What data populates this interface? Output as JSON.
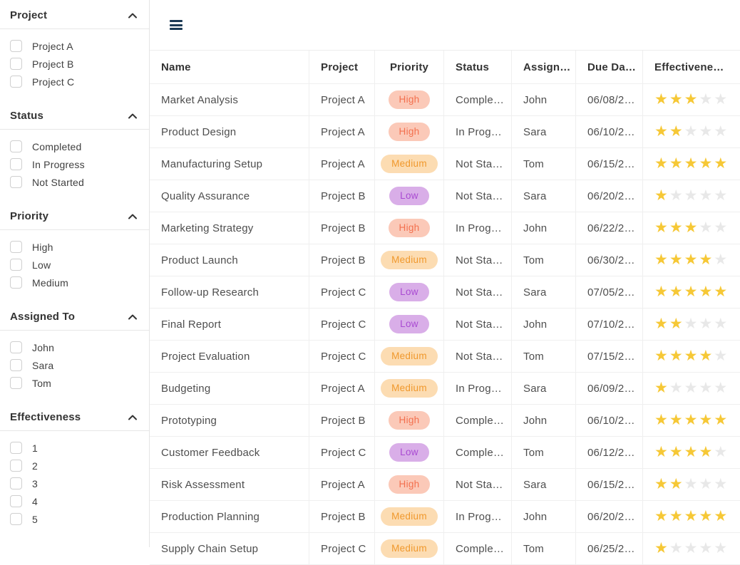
{
  "sidebar": {
    "sections": [
      {
        "title": "Project",
        "options": [
          "Project A",
          "Project B",
          "Project C"
        ]
      },
      {
        "title": "Status",
        "options": [
          "Completed",
          "In Progress",
          "Not Started"
        ]
      },
      {
        "title": "Priority",
        "options": [
          "High",
          "Low",
          "Medium"
        ]
      },
      {
        "title": "Assigned To",
        "options": [
          "John",
          "Sara",
          "Tom"
        ]
      },
      {
        "title": "Effectiveness",
        "options": [
          "1",
          "2",
          "3",
          "4",
          "5"
        ]
      }
    ]
  },
  "toolbar": {
    "menu_icon": "hamburger-icon",
    "menu_color": "#1c3a55"
  },
  "table": {
    "columns": [
      {
        "label": "Name"
      },
      {
        "label": "Project"
      },
      {
        "label": "Priority"
      },
      {
        "label": "Status"
      },
      {
        "label": "Assign…"
      },
      {
        "label": "Due Da…"
      },
      {
        "label": "Effectivene…"
      }
    ],
    "rows": [
      {
        "name": "Market Analysis",
        "project": "Project A",
        "priority": "High",
        "status": "Comple…",
        "assignee": "John",
        "due": "06/08/2…",
        "rating": 3
      },
      {
        "name": "Product Design",
        "project": "Project A",
        "priority": "High",
        "status": "In Prog…",
        "assignee": "Sara",
        "due": "06/10/2…",
        "rating": 2
      },
      {
        "name": "Manufacturing Setup",
        "project": "Project A",
        "priority": "Medium",
        "status": "Not Sta…",
        "assignee": "Tom",
        "due": "06/15/2…",
        "rating": 5
      },
      {
        "name": "Quality Assurance",
        "project": "Project B",
        "priority": "Low",
        "status": "Not Sta…",
        "assignee": "Sara",
        "due": "06/20/2…",
        "rating": 1
      },
      {
        "name": "Marketing Strategy",
        "project": "Project B",
        "priority": "High",
        "status": "In Prog…",
        "assignee": "John",
        "due": "06/22/2…",
        "rating": 3
      },
      {
        "name": "Product Launch",
        "project": "Project B",
        "priority": "Medium",
        "status": "Not Sta…",
        "assignee": "Tom",
        "due": "06/30/2…",
        "rating": 4
      },
      {
        "name": "Follow-up Research",
        "project": "Project C",
        "priority": "Low",
        "status": "Not Sta…",
        "assignee": "Sara",
        "due": "07/05/2…",
        "rating": 5
      },
      {
        "name": "Final Report",
        "project": "Project C",
        "priority": "Low",
        "status": "Not Sta…",
        "assignee": "John",
        "due": "07/10/2…",
        "rating": 2
      },
      {
        "name": "Project Evaluation",
        "project": "Project C",
        "priority": "Medium",
        "status": "Not Sta…",
        "assignee": "Tom",
        "due": "07/15/2…",
        "rating": 4
      },
      {
        "name": "Budgeting",
        "project": "Project A",
        "priority": "Medium",
        "status": "In Prog…",
        "assignee": "Sara",
        "due": "06/09/2…",
        "rating": 1
      },
      {
        "name": "Prototyping",
        "project": "Project B",
        "priority": "High",
        "status": "Comple…",
        "assignee": "John",
        "due": "06/10/2…",
        "rating": 5
      },
      {
        "name": "Customer Feedback",
        "project": "Project C",
        "priority": "Low",
        "status": "Comple…",
        "assignee": "Tom",
        "due": "06/12/2…",
        "rating": 4
      },
      {
        "name": "Risk Assessment",
        "project": "Project A",
        "priority": "High",
        "status": "Not Sta…",
        "assignee": "Sara",
        "due": "06/15/2…",
        "rating": 2
      },
      {
        "name": "Production Planning",
        "project": "Project B",
        "priority": "Medium",
        "status": "In Prog…",
        "assignee": "John",
        "due": "06/20/2…",
        "rating": 5
      },
      {
        "name": "Supply Chain Setup",
        "project": "Project C",
        "priority": "Medium",
        "status": "Comple…",
        "assignee": "Tom",
        "due": "06/25/2…",
        "rating": 1
      }
    ]
  },
  "colors": {
    "priority_high_bg": "#fbc9b8",
    "priority_high_text": "#f3704e",
    "priority_medium_bg": "#fcdcb2",
    "priority_medium_text": "#f0982c",
    "priority_low_bg": "#d9aee8",
    "priority_low_text": "#a94ad2",
    "star_filled": "#f6c836",
    "star_empty": "#e8e8e8",
    "header_text": "#333333",
    "body_text": "#4e4e4e",
    "grid_line": "#efefef"
  }
}
